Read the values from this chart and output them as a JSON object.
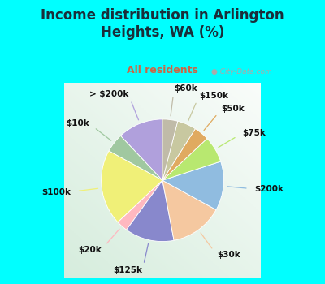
{
  "title": "Income distribution in Arlington\nHeights, WA (%)",
  "subtitle": "All residents",
  "title_color": "#1a2e3a",
  "subtitle_color": "#cc6644",
  "bg_color": "#00ffff",
  "chart_bg_color": "#e8f4ec",
  "labels": [
    "> $200k",
    "$10k",
    "$100k",
    "$20k",
    "$125k",
    "$30k",
    "$200k",
    "$75k",
    "$50k",
    "$150k",
    "$60k"
  ],
  "values": [
    12,
    5,
    20,
    3,
    13,
    14,
    13,
    7,
    4,
    5,
    4
  ],
  "colors": [
    "#b0a0dc",
    "#a0c8a0",
    "#f0f078",
    "#ffb8c0",
    "#8888cc",
    "#f5c8a0",
    "#90bce0",
    "#b8e870",
    "#e0aa60",
    "#c8c8a0",
    "#c0bba8"
  ],
  "startangle": 90,
  "label_fontsize": 7.5,
  "title_fontsize": 12,
  "subtitle_fontsize": 9
}
